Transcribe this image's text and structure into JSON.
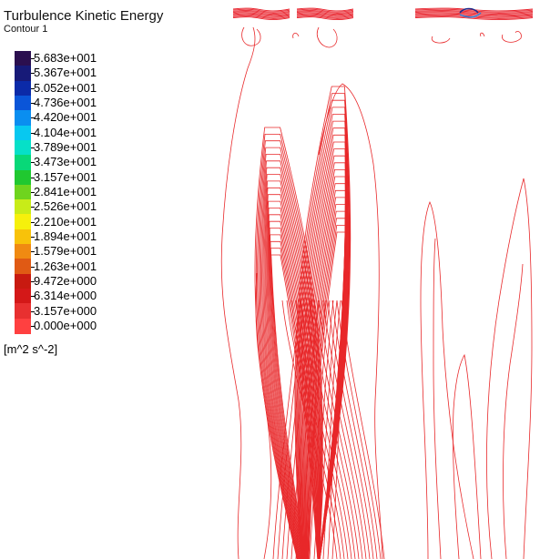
{
  "chart_data": {
    "type": "contour",
    "title": "Turbulence Kinetic Energy",
    "subtitle": "Contour 1",
    "units": "[m^2 s^-2]",
    "levels": [
      {
        "label": "5.683e+001",
        "value": 56.83,
        "color": "#2b0f4f"
      },
      {
        "label": "5.367e+001",
        "value": 53.67,
        "color": "#171a78"
      },
      {
        "label": "5.052e+001",
        "value": 50.52,
        "color": "#0b2aa8"
      },
      {
        "label": "4.736e+001",
        "value": 47.36,
        "color": "#0a55d8"
      },
      {
        "label": "4.420e+001",
        "value": 44.2,
        "color": "#0a8ef0"
      },
      {
        "label": "4.104e+001",
        "value": 41.04,
        "color": "#08c8f0"
      },
      {
        "label": "3.789e+001",
        "value": 37.89,
        "color": "#06e0c8"
      },
      {
        "label": "3.473e+001",
        "value": 34.73,
        "color": "#08d878"
      },
      {
        "label": "3.157e+001",
        "value": 31.57,
        "color": "#20c830"
      },
      {
        "label": "2.841e+001",
        "value": 28.41,
        "color": "#6fd41e"
      },
      {
        "label": "2.526e+001",
        "value": 25.26,
        "color": "#c8ec18"
      },
      {
        "label": "2.210e+001",
        "value": 22.1,
        "color": "#f6f00c"
      },
      {
        "label": "1.894e+001",
        "value": 18.94,
        "color": "#f8c20a"
      },
      {
        "label": "1.579e+001",
        "value": 15.79,
        "color": "#f08a12"
      },
      {
        "label": "1.263e+001",
        "value": 12.63,
        "color": "#e05a14"
      },
      {
        "label": "9.472e+000",
        "value": 9.472,
        "color": "#c81a10"
      },
      {
        "label": "6.314e+000",
        "value": 6.314,
        "color": "#d41818"
      },
      {
        "label": "3.157e+000",
        "value": 3.157,
        "color": "#e83030"
      },
      {
        "label": "0.000e+000",
        "value": 0.0,
        "color": "#ff4040"
      }
    ],
    "contour_color": "#e8282a",
    "hotspot_colors": [
      "#1e2a8c",
      "#2a7fd8"
    ],
    "legend_position": "top-left"
  }
}
